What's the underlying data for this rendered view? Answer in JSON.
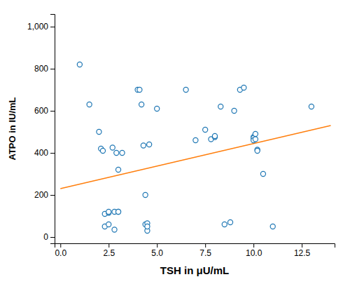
{
  "chart_data": {
    "type": "scatter",
    "xlabel": "TSH in μU/mL",
    "ylabel": "ATPO in IU/mL",
    "series": [
      {
        "type": "scatter",
        "marker": "circle",
        "x": [
          1.0,
          1.5,
          2.0,
          2.1,
          2.2,
          2.3,
          2.3,
          2.5,
          2.5,
          2.5,
          2.7,
          2.8,
          2.8,
          2.9,
          3.0,
          3.0,
          3.0,
          3.2,
          4.0,
          4.1,
          4.2,
          4.3,
          4.4,
          4.4,
          4.5,
          4.5,
          4.5,
          4.6,
          5.0,
          6.5,
          7.0,
          7.5,
          7.8,
          8.0,
          8.0,
          8.3,
          8.5,
          8.8,
          9.0,
          9.3,
          9.5,
          10.0,
          10.0,
          10.0,
          10.1,
          10.1,
          10.2,
          10.2,
          10.5,
          11.0,
          13.0
        ],
        "values": [
          820,
          630,
          500,
          420,
          410,
          110,
          50,
          115,
          120,
          60,
          425,
          120,
          35,
          400,
          320,
          120,
          120,
          400,
          700,
          700,
          630,
          435,
          200,
          60,
          30,
          65,
          50,
          440,
          610,
          700,
          460,
          510,
          465,
          475,
          480,
          620,
          60,
          70,
          600,
          700,
          710,
          475,
          470,
          460,
          490,
          465,
          415,
          410,
          300,
          50,
          620
        ]
      },
      {
        "type": "line",
        "x": [
          0.0,
          14.0
        ],
        "values": [
          230,
          530
        ]
      }
    ],
    "xlim": [
      -0.3,
      14.2
    ],
    "ylim": [
      -30,
      1060
    ],
    "xticks": [
      {
        "value": 0.0,
        "label": "0.0"
      },
      2.5,
      {
        "value": 5.0,
        "label": "5.0"
      },
      7.5,
      {
        "value": 10.0,
        "label": "10.0"
      },
      12.5
    ],
    "yticks": [
      0,
      200,
      400,
      600,
      800,
      {
        "value": 1000,
        "label": "1,000"
      }
    ]
  }
}
